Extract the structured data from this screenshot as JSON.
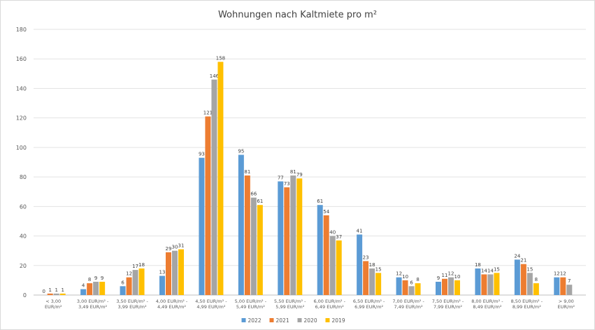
{
  "chart_data": {
    "type": "bar",
    "title": "Wohnungen nach Kaltmiete pro m²",
    "xlabel": "",
    "ylabel": "",
    "ylim": [
      0,
      180
    ],
    "yticks": [
      0,
      20,
      40,
      60,
      80,
      100,
      120,
      140,
      160,
      180
    ],
    "grid": true,
    "legend_position": "bottom",
    "categories": [
      [
        "< 3,00",
        "EUR/m²"
      ],
      [
        "3,00 EUR/m² -",
        "3,49 EUR/m²"
      ],
      [
        "3,50 EUR/m² -",
        "3,99 EUR/m²"
      ],
      [
        "4,00 EUR/m² -",
        "4,49 EUR/m²"
      ],
      [
        "4,50 EUR/m² -",
        "4,99 EUR/m²"
      ],
      [
        "5,00 EUR/m² -",
        "5,49 EUR/m²"
      ],
      [
        "5,50 EUR/m² -",
        "5,99 EUR/m²"
      ],
      [
        "6,00 EUR/m² -",
        "6,49 EUR/m²"
      ],
      [
        "6,50 EUR/m² -",
        "6,99 EUR/m²"
      ],
      [
        "7,00 EUR/m² -",
        "7,49 EUR/m²"
      ],
      [
        "7,50 EUR/m² -",
        "7,99 EUR/m²"
      ],
      [
        "8,00 EUR/m² -",
        "8,49 EUR/m²"
      ],
      [
        "8,50 EUR/m² -",
        "8,99 EUR/m²"
      ],
      [
        "> 9,00",
        "EUR/m²"
      ]
    ],
    "series": [
      {
        "name": "2022",
        "color": "#5b9bd5",
        "values": [
          0,
          4,
          6,
          13,
          93,
          95,
          77,
          61,
          41,
          12,
          9,
          18,
          24,
          12
        ]
      },
      {
        "name": "2021",
        "color": "#ed7d31",
        "values": [
          1,
          8,
          12,
          29,
          121,
          81,
          73,
          54,
          23,
          10,
          11,
          14,
          21,
          12
        ]
      },
      {
        "name": "2020",
        "color": "#a5a5a5",
        "values": [
          1,
          9,
          17,
          30,
          146,
          66,
          81,
          40,
          18,
          6,
          12,
          14,
          15,
          7
        ]
      },
      {
        "name": "2019",
        "color": "#ffc000",
        "values": [
          1,
          9,
          18,
          31,
          158,
          61,
          79,
          37,
          15,
          8,
          10,
          15,
          8,
          null
        ]
      }
    ]
  }
}
